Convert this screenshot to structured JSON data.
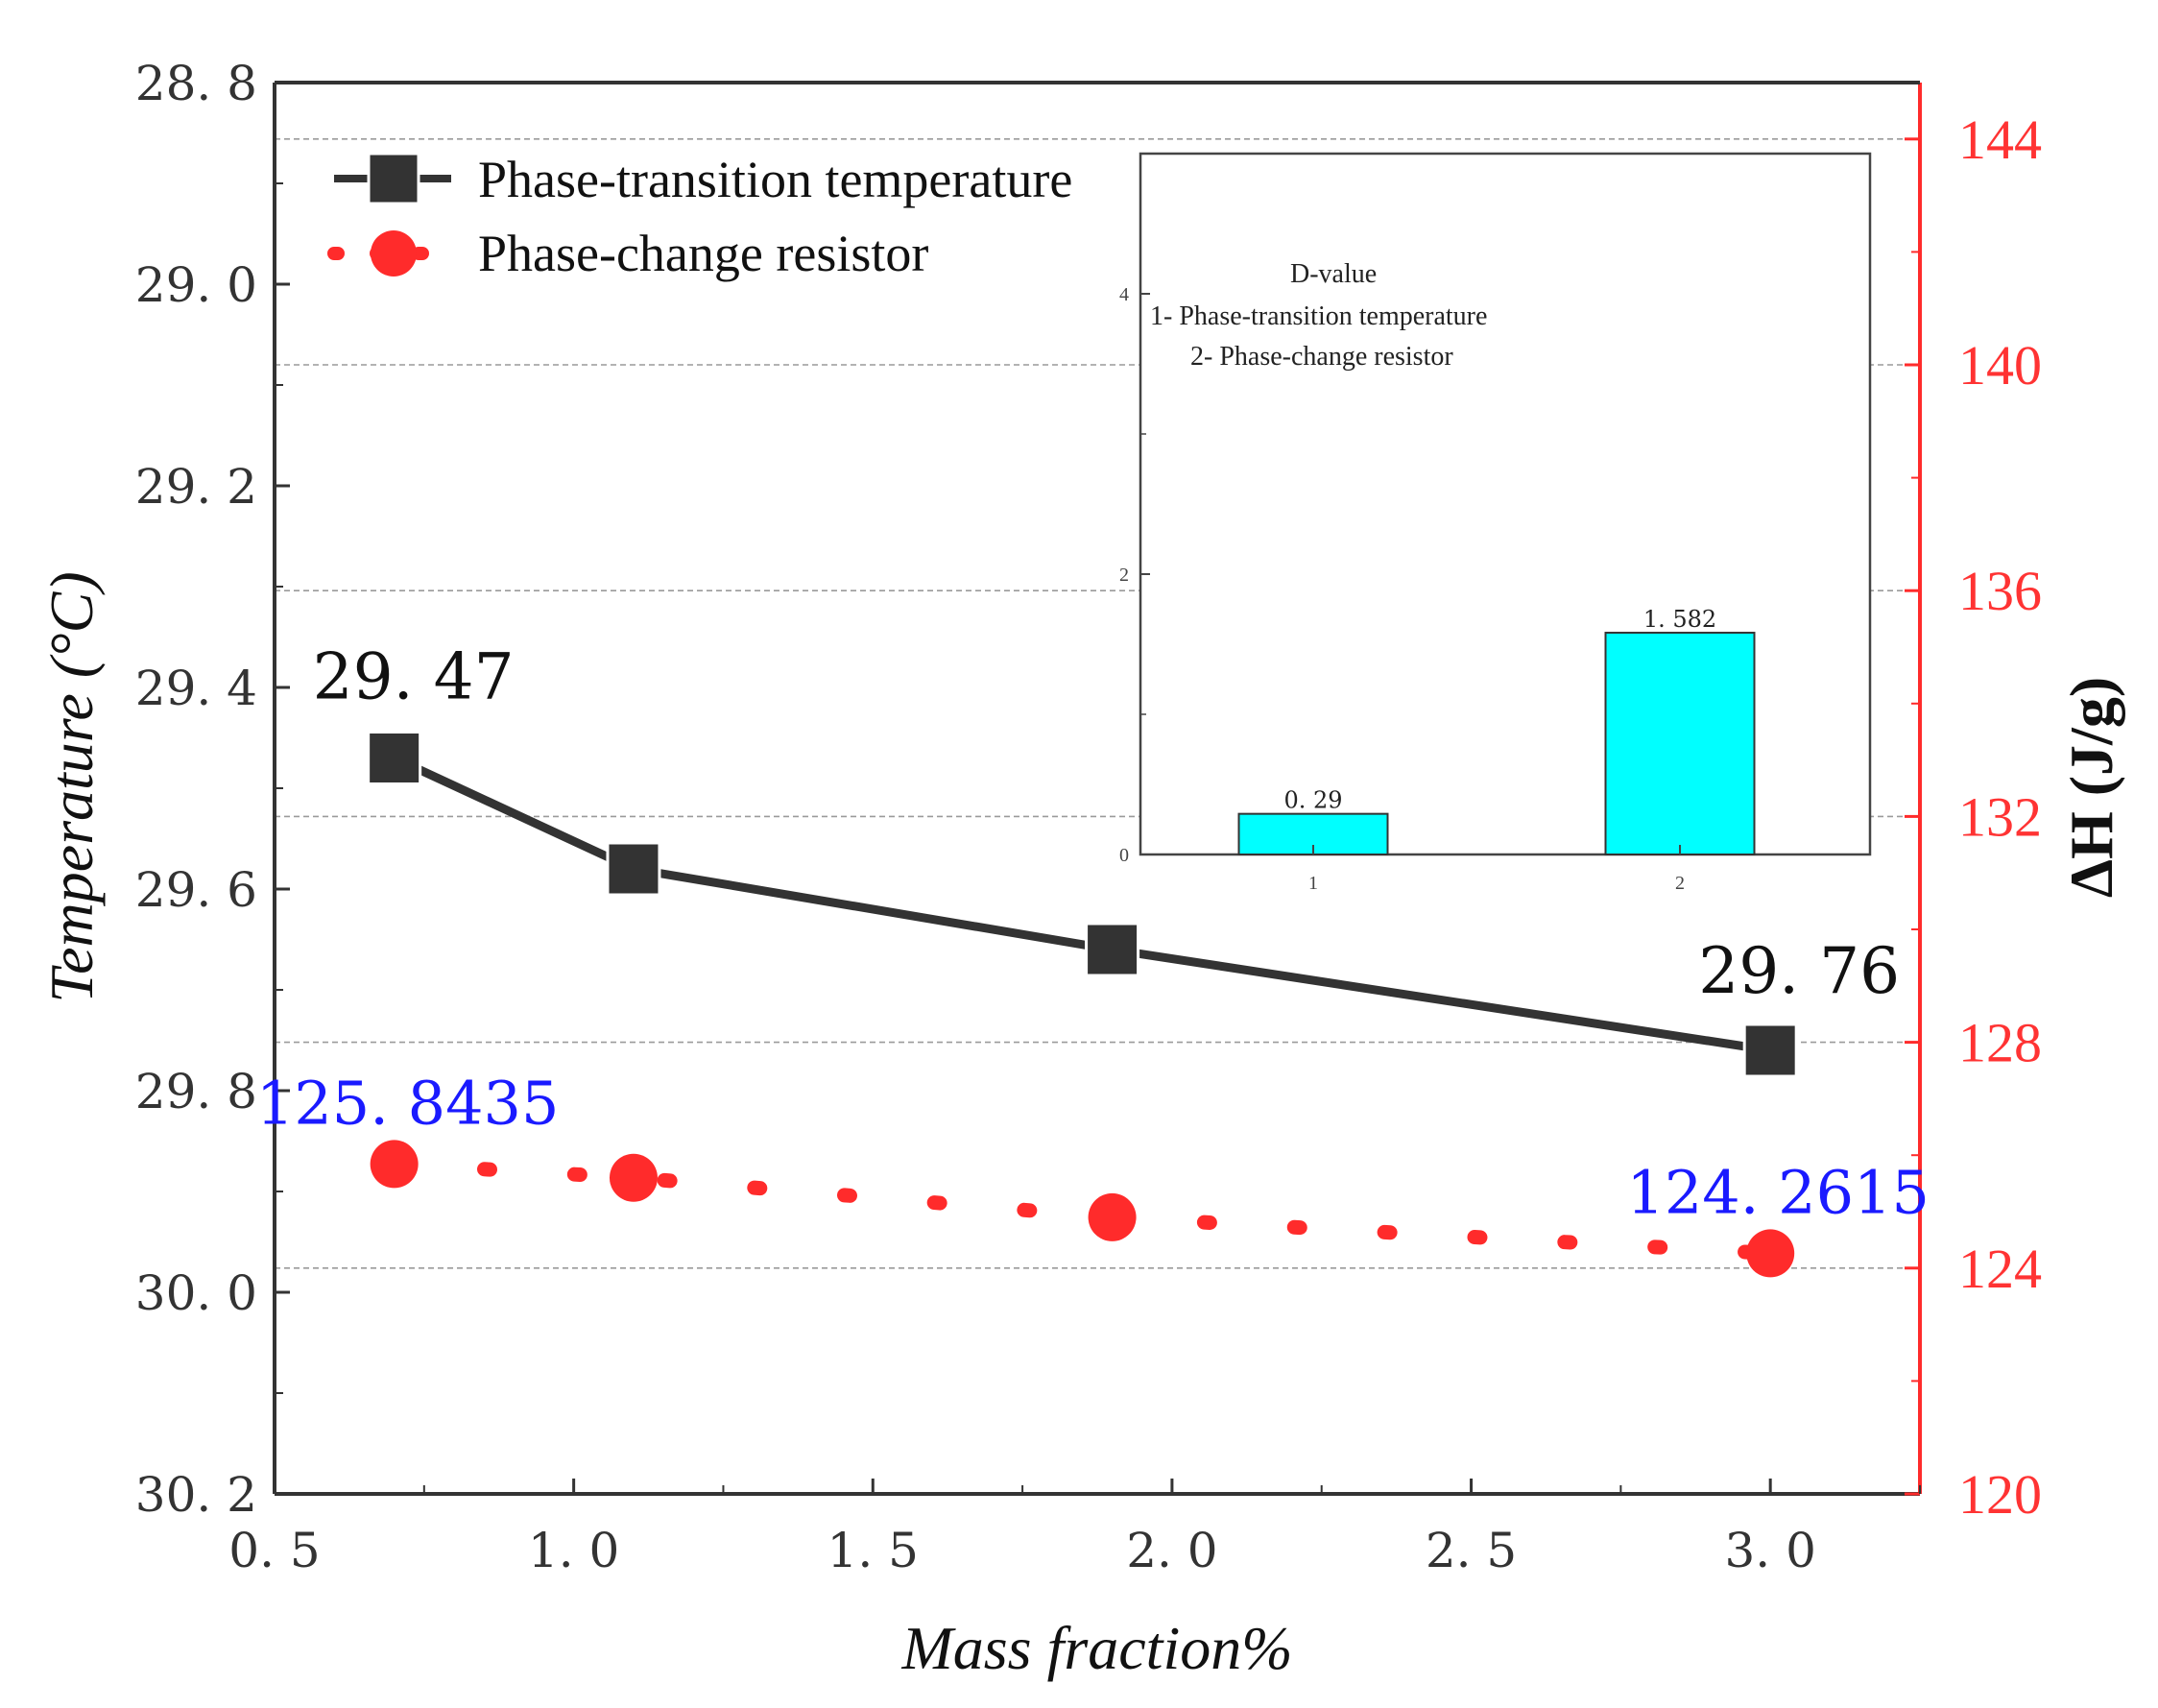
{
  "chart_data": {
    "type": "line",
    "x": [
      0.7,
      1.1,
      1.9,
      3.0
    ],
    "xlabel": "Mass fraction%",
    "xlim": [
      0.5,
      3.25
    ],
    "x_ticks": [
      "0.5",
      "1.0",
      "1.5",
      "2.0",
      "2.5",
      "3.0"
    ],
    "left_axis": {
      "label": "Temperature (°C)",
      "range": [
        28.8,
        30.2
      ],
      "inverted": true,
      "ticks": [
        "28.8",
        "29.0",
        "29.2",
        "29.4",
        "29.6",
        "29.8",
        "30.0",
        "30.2"
      ]
    },
    "right_axis": {
      "label": "ΔH (J/g)",
      "range": [
        120,
        145
      ],
      "ticks": [
        "120",
        "124",
        "128",
        "132",
        "136",
        "140",
        "144"
      ]
    },
    "series": [
      {
        "name": "Phase-transition temperature",
        "axis": "left",
        "values": [
          29.47,
          29.58,
          29.66,
          29.76
        ],
        "color": "#333333",
        "marker": "square",
        "line": "solid"
      },
      {
        "name": "Phase-change resistor",
        "axis": "right",
        "values": [
          125.8435,
          125.6,
          124.9,
          124.2615
        ],
        "color": "#ff2b2b",
        "marker": "circle",
        "line": "dotted"
      }
    ],
    "annotations": [
      {
        "text": "29.47",
        "series": 0,
        "point": 0
      },
      {
        "text": "29.76",
        "series": 0,
        "point": 3
      },
      {
        "text": "125.8435",
        "series": 1,
        "point": 0
      },
      {
        "text": "124.2615",
        "series": 1,
        "point": 3
      }
    ],
    "inset": {
      "type": "bar",
      "title_lines": [
        "D-value",
        "1- Phase-transition temperature",
        "2- Phase-change resistor"
      ],
      "categories": [
        "1",
        "2"
      ],
      "values": [
        0.29,
        1.582
      ],
      "value_labels": [
        "0.29",
        "1.582"
      ],
      "ylim": [
        0,
        5
      ],
      "y_ticks": [
        "0",
        "2",
        "4"
      ],
      "bar_color": "#00ffff"
    }
  }
}
